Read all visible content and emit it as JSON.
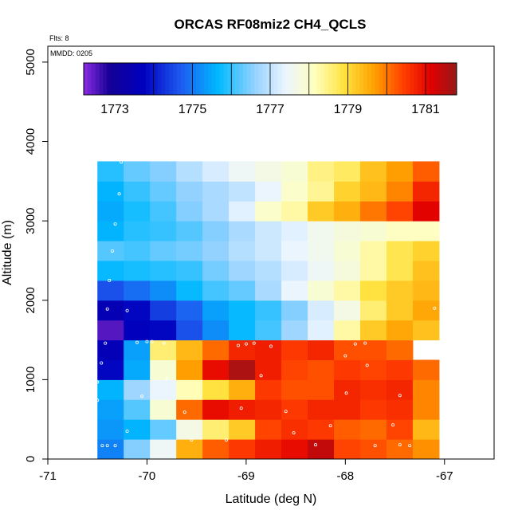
{
  "chart_data": {
    "type": "heatmap",
    "title": "ORCAS RF08miz2 CH4_QCLS",
    "xlabel": "Latitude (deg N)",
    "ylabel": "Altitude (m)",
    "xlim": [
      -71,
      -66.5
    ],
    "ylim": [
      0,
      5200
    ],
    "x_ticks": [
      -71,
      -70,
      -69,
      -68,
      -67
    ],
    "x_tick_labels": [
      "-71",
      "-70",
      "-69",
      "-68",
      "-67"
    ],
    "y_ticks": [
      0,
      1000,
      2000,
      3000,
      4000,
      5000
    ],
    "y_tick_labels": [
      "0",
      "1000",
      "2000",
      "3000",
      "4000",
      "5000"
    ],
    "annotations": {
      "flights": "Flts: 8",
      "date": "MMDD: 0205"
    },
    "colorbar": {
      "min": 1772.2,
      "max": 1781.8,
      "tick_values": [
        1773,
        1775,
        1777,
        1779,
        1781
      ],
      "tick_labels": [
        "1773",
        "1775",
        "1777",
        "1779",
        "1781"
      ],
      "divisions": [
        1774,
        1775,
        1776,
        1777,
        1778,
        1779,
        1780,
        1781
      ]
    },
    "grid": {
      "lon_start": -70.5,
      "lon_step": 0.265,
      "alt_start": 0,
      "alt_step": 250,
      "rows": [
        [
          1775.1,
          1776.5,
          1777.5,
          1779.5,
          1780.2,
          1780.5,
          1780.8,
          1781.0,
          1781.4,
          1780.4,
          1780.3,
          1780.1,
          1779.8
        ],
        [
          1775.3,
          1775.6,
          1776.3,
          1777.7,
          1778.6,
          1779.2,
          1780.4,
          1780.6,
          1780.5,
          1780.2,
          1780.1,
          1780.4,
          1779.4
        ],
        [
          1775.4,
          1776.2,
          1777.9,
          1780.1,
          1781.0,
          1780.8,
          1780.7,
          1780.5,
          1780.7,
          1780.7,
          1780.5,
          1780.6,
          1779.9
        ],
        [
          1775.6,
          1776.7,
          1777.4,
          1778.2,
          1778.9,
          1779.5,
          1780.5,
          1780.3,
          1780.3,
          1780.7,
          1780.6,
          1780.7,
          1779.9
        ],
        [
          1773.8,
          1775.5,
          1777.9,
          1779.7,
          1781.0,
          1781.6,
          1780.8,
          1780.4,
          1780.3,
          1780.5,
          1780.4,
          1780.5,
          1780.1
        ],
        [
          1773.6,
          1775.4,
          1778.6,
          1779.4,
          1780.1,
          1780.7,
          1780.8,
          1780.5,
          1780.7,
          1780.3,
          1780.3,
          1780.1,
          null
        ],
        [
          1772.5,
          1773.7,
          1773.8,
          1774.6,
          1775.2,
          1775.7,
          1776.1,
          1776.7,
          1777.3,
          1778.3,
          1779.2,
          1779.6,
          1779.3
        ],
        [
          1773.5,
          1773.8,
          1774.4,
          1774.8,
          1775.4,
          1775.7,
          1776.0,
          1776.5,
          1777.2,
          1777.7,
          1778.6,
          1779.2,
          1779.6
        ],
        [
          1774.6,
          1774.9,
          1775.2,
          1775.7,
          1776.1,
          1776.3,
          1776.8,
          1777.4,
          1777.9,
          1778.3,
          1778.9,
          1779.2,
          1779.4
        ],
        [
          1775.7,
          1775.8,
          1775.9,
          1776.0,
          1776.4,
          1776.7,
          1776.9,
          1777.2,
          1777.5,
          1777.8,
          1778.3,
          1778.8,
          1779.3
        ],
        [
          1776.2,
          1776.1,
          1776.3,
          1776.4,
          1776.6,
          1776.9,
          1777.1,
          1777.4,
          1777.6,
          1777.9,
          1778.3,
          1778.8,
          1779.1
        ],
        [
          1775.6,
          1775.9,
          1776.0,
          1776.2,
          1776.5,
          1776.8,
          1777.1,
          1777.3,
          1777.6,
          1777.8,
          1777.9,
          1778.1,
          1778.1
        ],
        [
          1775.5,
          1775.8,
          1776.1,
          1776.5,
          1776.8,
          1777.3,
          1778.0,
          1778.3,
          1779.2,
          1779.5,
          1780.0,
          1780.4,
          1781.1
        ],
        [
          1775.6,
          1776.0,
          1776.3,
          1776.6,
          1776.8,
          1777.0,
          1777.4,
          1778.0,
          1778.4,
          1779.1,
          1779.4,
          1779.9,
          1780.7
        ],
        [
          1775.9,
          1776.3,
          1776.5,
          1776.9,
          1777.2,
          1777.5,
          1777.7,
          1777.9,
          1778.5,
          1778.7,
          1779.3,
          1779.7,
          1780.2
        ]
      ]
    },
    "scatter_points": [
      [
        -70.45,
        170
      ],
      [
        -70.4,
        170
      ],
      [
        -70.32,
        170
      ],
      [
        -70.2,
        350
      ],
      [
        -70.05,
        790
      ],
      [
        -69.8,
        1010
      ],
      [
        -69.62,
        590
      ],
      [
        -69.55,
        240
      ],
      [
        -69.2,
        240
      ],
      [
        -69.05,
        640
      ],
      [
        -68.85,
        1050
      ],
      [
        -68.6,
        600
      ],
      [
        -68.52,
        330
      ],
      [
        -68.3,
        180
      ],
      [
        -68.15,
        420
      ],
      [
        -67.99,
        830
      ],
      [
        -67.7,
        170
      ],
      [
        -67.52,
        430
      ],
      [
        -67.45,
        180
      ],
      [
        -67.35,
        170
      ],
      [
        -67.45,
        800
      ],
      [
        -70.5,
        740
      ],
      [
        -70.5,
        970
      ],
      [
        -70.46,
        1210
      ],
      [
        -70.42,
        1460
      ],
      [
        -70.1,
        1470
      ],
      [
        -70.0,
        1480
      ],
      [
        -69.95,
        1480
      ],
      [
        -69.83,
        1460
      ],
      [
        -69.0,
        1450
      ],
      [
        -69.08,
        1430
      ],
      [
        -68.92,
        1460
      ],
      [
        -68.75,
        1420
      ],
      [
        -68.0,
        1300
      ],
      [
        -67.9,
        1450
      ],
      [
        -67.8,
        1460
      ],
      [
        -67.78,
        1180
      ],
      [
        -70.4,
        1890
      ],
      [
        -70.2,
        1870
      ],
      [
        -70.38,
        2250
      ],
      [
        -70.35,
        2620
      ],
      [
        -70.32,
        2960
      ],
      [
        -70.28,
        3340
      ],
      [
        -70.26,
        3740
      ],
      [
        -67.1,
        1900
      ],
      [
        -66.95,
        2330
      ],
      [
        -66.93,
        2800
      ],
      [
        -66.85,
        3220
      ],
      [
        -66.78,
        3660
      ]
    ]
  }
}
